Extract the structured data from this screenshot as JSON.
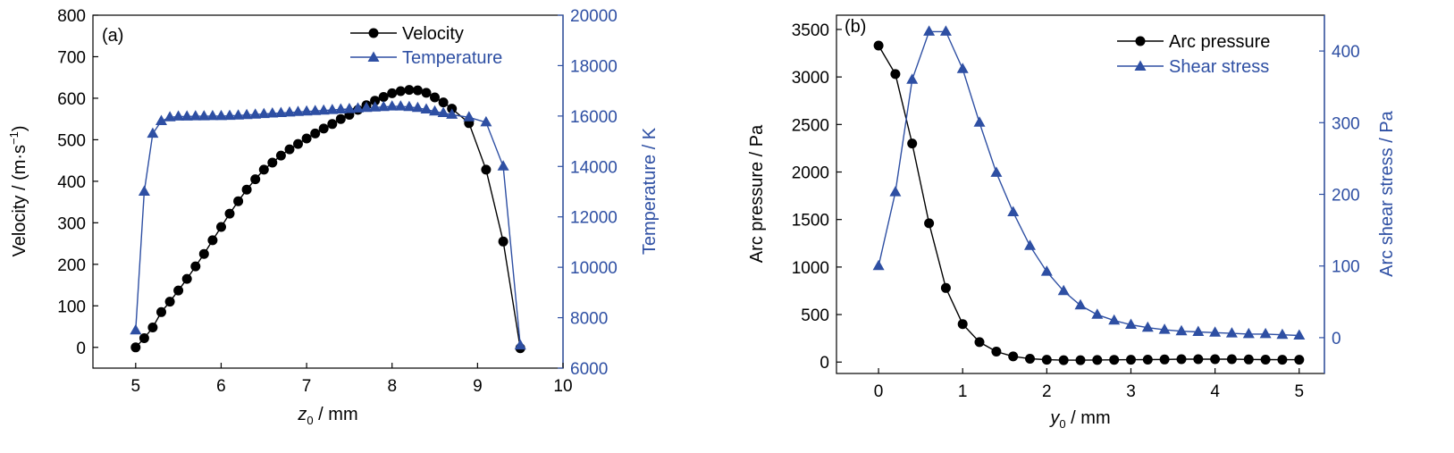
{
  "chart_data": [
    {
      "type": "line",
      "panel_label": "(a)",
      "xlabel_sym": "z",
      "xlabel_sub": "0",
      "xlabel_unit": " / mm",
      "ylabel_pre": "Velocity / (m·s",
      "ylabel_sup": "−1",
      "ylabel_post": ")",
      "y2label": "Temperature / K",
      "xlim": [
        4.5,
        10
      ],
      "ylim": [
        -50,
        800
      ],
      "y2lim": [
        6000,
        20000
      ],
      "xticks": [
        5,
        6,
        7,
        8,
        9,
        10
      ],
      "yticks": [
        0,
        100,
        200,
        300,
        400,
        500,
        600,
        700,
        800
      ],
      "y2ticks": [
        6000,
        8000,
        10000,
        12000,
        14000,
        16000,
        18000,
        20000
      ],
      "legend_position": "top-right",
      "series": [
        {
          "name": "Velocity",
          "axis": "left",
          "marker": "circle",
          "color": "#000000",
          "x": [
            5.0,
            5.1,
            5.2,
            5.3,
            5.4,
            5.5,
            5.6,
            5.7,
            5.8,
            5.9,
            6.0,
            6.1,
            6.2,
            6.3,
            6.4,
            6.5,
            6.6,
            6.7,
            6.8,
            6.9,
            7.0,
            7.1,
            7.2,
            7.3,
            7.4,
            7.5,
            7.6,
            7.7,
            7.8,
            7.9,
            8.0,
            8.1,
            8.2,
            8.3,
            8.4,
            8.5,
            8.6,
            8.7,
            8.9,
            9.1,
            9.3,
            9.5
          ],
          "y": [
            0,
            22,
            48,
            85,
            110,
            137,
            165,
            195,
            225,
            258,
            290,
            322,
            352,
            380,
            405,
            428,
            445,
            462,
            477,
            490,
            503,
            515,
            527,
            538,
            550,
            560,
            572,
            583,
            594,
            603,
            612,
            617,
            620,
            619,
            613,
            602,
            590,
            575,
            540,
            428,
            255,
            -2
          ]
        },
        {
          "name": "Temperature",
          "axis": "right",
          "marker": "triangle",
          "color": "#2e4fa3",
          "x": [
            5.0,
            5.1,
            5.2,
            5.3,
            5.4,
            5.5,
            5.6,
            5.7,
            5.8,
            5.9,
            6.0,
            6.1,
            6.2,
            6.3,
            6.4,
            6.5,
            6.6,
            6.7,
            6.8,
            6.9,
            7.0,
            7.1,
            7.2,
            7.3,
            7.4,
            7.5,
            7.6,
            7.7,
            7.8,
            7.9,
            8.0,
            8.1,
            8.2,
            8.3,
            8.4,
            8.5,
            8.6,
            8.7,
            8.9,
            9.1,
            9.3,
            9.5
          ],
          "y": [
            7500,
            13000,
            15300,
            15800,
            15950,
            15980,
            15980,
            15990,
            15990,
            16000,
            16000,
            16010,
            16020,
            16040,
            16060,
            16080,
            16100,
            16120,
            16140,
            16160,
            16180,
            16200,
            16220,
            16240,
            16260,
            16280,
            16300,
            16320,
            16340,
            16360,
            16380,
            16380,
            16360,
            16320,
            16260,
            16180,
            16120,
            16050,
            15950,
            15750,
            14000,
            6900
          ]
        }
      ]
    },
    {
      "type": "line",
      "panel_label": "(b)",
      "xlabel_sym": "y",
      "xlabel_sub": "0",
      "xlabel_unit": " / mm",
      "ylabel": "Arc pressure / Pa",
      "y2label": "Arc shear stress / Pa",
      "xlim": [
        -0.5,
        5.3
      ],
      "ylim": [
        -120,
        3650
      ],
      "y2lim": [
        -50,
        450
      ],
      "xticks": [
        0,
        1,
        2,
        3,
        4,
        5
      ],
      "yticks": [
        0,
        500,
        1000,
        1500,
        2000,
        2500,
        3000,
        3500
      ],
      "y2ticks": [
        0,
        100,
        200,
        300,
        400
      ],
      "legend_position": "top-right",
      "series": [
        {
          "name": "Arc pressure",
          "axis": "left",
          "marker": "circle",
          "color": "#000000",
          "x": [
            0,
            0.2,
            0.4,
            0.6,
            0.8,
            1.0,
            1.2,
            1.4,
            1.6,
            1.8,
            2.0,
            2.2,
            2.4,
            2.6,
            2.8,
            3.0,
            3.2,
            3.4,
            3.6,
            3.8,
            4.0,
            4.2,
            4.4,
            4.6,
            4.8,
            5.0
          ],
          "y": [
            3330,
            3030,
            2300,
            1460,
            780,
            400,
            210,
            110,
            60,
            35,
            25,
            20,
            20,
            22,
            24,
            25,
            26,
            28,
            30,
            30,
            30,
            30,
            28,
            26,
            25,
            25
          ]
        },
        {
          "name": "Shear stress",
          "axis": "right",
          "marker": "triangle",
          "color": "#2e4fa3",
          "x": [
            0,
            0.2,
            0.4,
            0.6,
            0.8,
            1.0,
            1.2,
            1.4,
            1.6,
            1.8,
            2.0,
            2.2,
            2.4,
            2.6,
            2.8,
            3.0,
            3.2,
            3.4,
            3.6,
            3.8,
            4.0,
            4.2,
            4.4,
            4.6,
            4.8,
            5.0
          ],
          "y": [
            100,
            203,
            360,
            427,
            427,
            375,
            300,
            230,
            175,
            128,
            92,
            65,
            45,
            32,
            24,
            18,
            14,
            11,
            9,
            8,
            7,
            6,
            5,
            5,
            4,
            3
          ]
        }
      ]
    }
  ]
}
